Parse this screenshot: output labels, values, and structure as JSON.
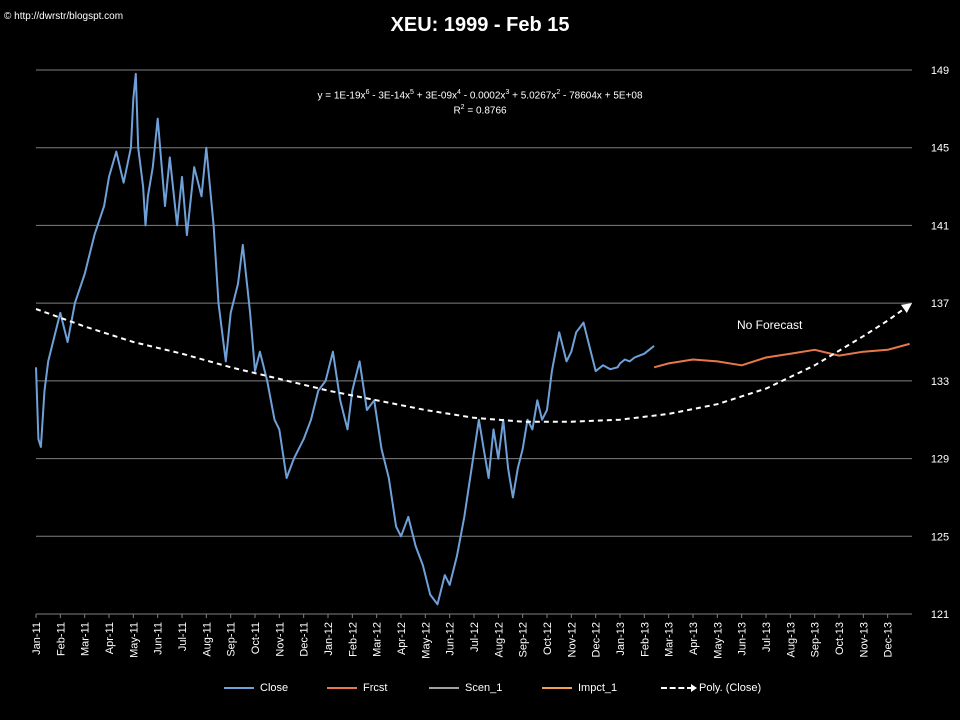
{
  "credit": "© http://dwrstr/blogspt.com",
  "chart_data": {
    "type": "line",
    "title": "XEU: 1999 - Feb 15",
    "equation": {
      "line1_html": "y = 1E-19x<sup>6</sup> - 3E-14x<sup>5</sup> + 3E-09x<sup>4</sup> - 0.0002x<sup>3</sup> + 5.0267x<sup>2</sup> - 78604x + 5E+08",
      "line2_html": "R<sup>2</sup> = 0.8766"
    },
    "annotation": "No Forecast",
    "ylim": [
      121,
      149
    ],
    "yticks": [
      121,
      125,
      129,
      133,
      137,
      141,
      145,
      149
    ],
    "x_range_months": [
      0,
      36
    ],
    "x_tick_labels": [
      "Jan-11",
      "Feb-11",
      "Mar-11",
      "Apr-11",
      "May-11",
      "Jun-11",
      "Jul-11",
      "Aug-11",
      "Sep-11",
      "Oct-11",
      "Nov-11",
      "Dec-11",
      "Jan-12",
      "Feb-12",
      "Mar-12",
      "Apr-12",
      "May-12",
      "Jun-12",
      "Jul-12",
      "Aug-12",
      "Sep-12",
      "Oct-12",
      "Nov-12",
      "Dec-12",
      "Jan-13",
      "Feb-13",
      "Mar-13",
      "Apr-13",
      "May-13",
      "Jun-13",
      "Jul-13",
      "Aug-13",
      "Sep-13",
      "Oct-13",
      "Nov-13",
      "Dec-13"
    ],
    "grid": true,
    "y_axis_position": "right",
    "legend_position": "bottom",
    "colors": {
      "close": "#6fa0d8",
      "frcst": "#e8774a",
      "scen": "#a0a0a0",
      "impct": "#f0a050",
      "poly": "#ffffff",
      "grid": "#7f7f7f"
    },
    "series": [
      {
        "name": "Close",
        "key": "close",
        "x": [
          0,
          0.1,
          0.2,
          0.35,
          0.5,
          0.7,
          1.0,
          1.3,
          1.6,
          2.0,
          2.4,
          2.8,
          3.0,
          3.3,
          3.6,
          3.9,
          4.0,
          4.1,
          4.2,
          4.4,
          4.5,
          4.6,
          4.8,
          5.0,
          5.3,
          5.5,
          5.8,
          6.0,
          6.2,
          6.5,
          6.8,
          7.0,
          7.3,
          7.5,
          7.8,
          8.0,
          8.3,
          8.5,
          8.8,
          9.0,
          9.2,
          9.5,
          9.8,
          10.0,
          10.3,
          10.6,
          11.0,
          11.3,
          11.6,
          11.9,
          12.2,
          12.5,
          12.8,
          13.0,
          13.3,
          13.6,
          13.9,
          14.2,
          14.5,
          14.8,
          15.0,
          15.3,
          15.6,
          15.9,
          16.2,
          16.5,
          16.8,
          17.0,
          17.3,
          17.6,
          17.9,
          18.2,
          18.4,
          18.6,
          18.8,
          19.0,
          19.2,
          19.4,
          19.6,
          19.8,
          20.0,
          20.2,
          20.4,
          20.6,
          20.8,
          21.0,
          21.2,
          21.5,
          21.8,
          22.0,
          22.2,
          22.5,
          22.8,
          23.0,
          23.3,
          23.6,
          23.9,
          24.0,
          24.2,
          24.4,
          24.6,
          24.8,
          25.0,
          25.2,
          25.4
        ],
        "values": [
          133.7,
          130.0,
          129.6,
          132.5,
          134.0,
          135.0,
          136.5,
          135.0,
          137.0,
          138.5,
          140.5,
          142.0,
          143.5,
          144.8,
          143.2,
          145.0,
          147.5,
          148.8,
          145.0,
          143.0,
          141.0,
          142.5,
          144.0,
          146.5,
          142.0,
          144.5,
          141.0,
          143.5,
          140.5,
          144.0,
          142.5,
          145.0,
          141.0,
          137.0,
          134.0,
          136.5,
          138.0,
          140.0,
          136.5,
          133.5,
          134.5,
          133.0,
          131.0,
          130.5,
          128.0,
          129.0,
          130.0,
          131.0,
          132.5,
          133.0,
          134.5,
          132.0,
          130.5,
          132.5,
          134.0,
          131.5,
          132.0,
          129.5,
          128.0,
          125.5,
          125.0,
          126.0,
          124.5,
          123.5,
          122.0,
          121.5,
          123.0,
          122.5,
          124.0,
          126.0,
          128.5,
          131.0,
          129.5,
          128.0,
          130.5,
          129.0,
          131.0,
          128.5,
          127.0,
          128.5,
          129.5,
          131.0,
          130.5,
          132.0,
          131.0,
          131.5,
          133.5,
          135.5,
          134.0,
          134.5,
          135.5,
          136.0,
          134.5,
          133.5,
          133.8,
          133.6,
          133.7,
          133.9,
          134.1,
          134.0,
          134.2,
          134.3,
          134.4,
          134.6,
          134.8
        ]
      },
      {
        "name": "Frcst",
        "key": "frcst",
        "x": [
          25.4,
          26.0,
          27.0,
          28.0,
          29.0,
          30.0,
          31.0,
          32.0,
          33.0,
          34.0,
          35.0,
          35.9
        ],
        "values": [
          133.7,
          133.9,
          134.1,
          134.0,
          133.8,
          134.2,
          134.4,
          134.6,
          134.3,
          134.5,
          134.6,
          134.9
        ]
      },
      {
        "name": "Scen_1",
        "key": "scen",
        "x": [],
        "values": []
      },
      {
        "name": "Impct_1",
        "key": "impct",
        "x": [],
        "values": []
      },
      {
        "name": "Poly. (Close)",
        "key": "poly",
        "x": [
          0,
          2,
          4,
          6,
          8,
          10,
          12,
          14,
          16,
          18,
          20,
          22,
          24,
          26,
          28,
          30,
          32,
          34,
          35,
          36
        ],
        "values": [
          136.7,
          135.8,
          135.0,
          134.4,
          133.7,
          133.1,
          132.5,
          132.0,
          131.5,
          131.1,
          130.9,
          130.9,
          131.0,
          131.3,
          131.8,
          132.6,
          133.8,
          135.3,
          136.1,
          137.0
        ]
      }
    ],
    "legend": [
      {
        "label": "Close",
        "key": "close"
      },
      {
        "label": "Frcst",
        "key": "frcst"
      },
      {
        "label": "Scen_1",
        "key": "scen"
      },
      {
        "label": "Impct_1",
        "key": "impct"
      },
      {
        "label": "Poly. (Close)",
        "key": "poly"
      }
    ]
  }
}
